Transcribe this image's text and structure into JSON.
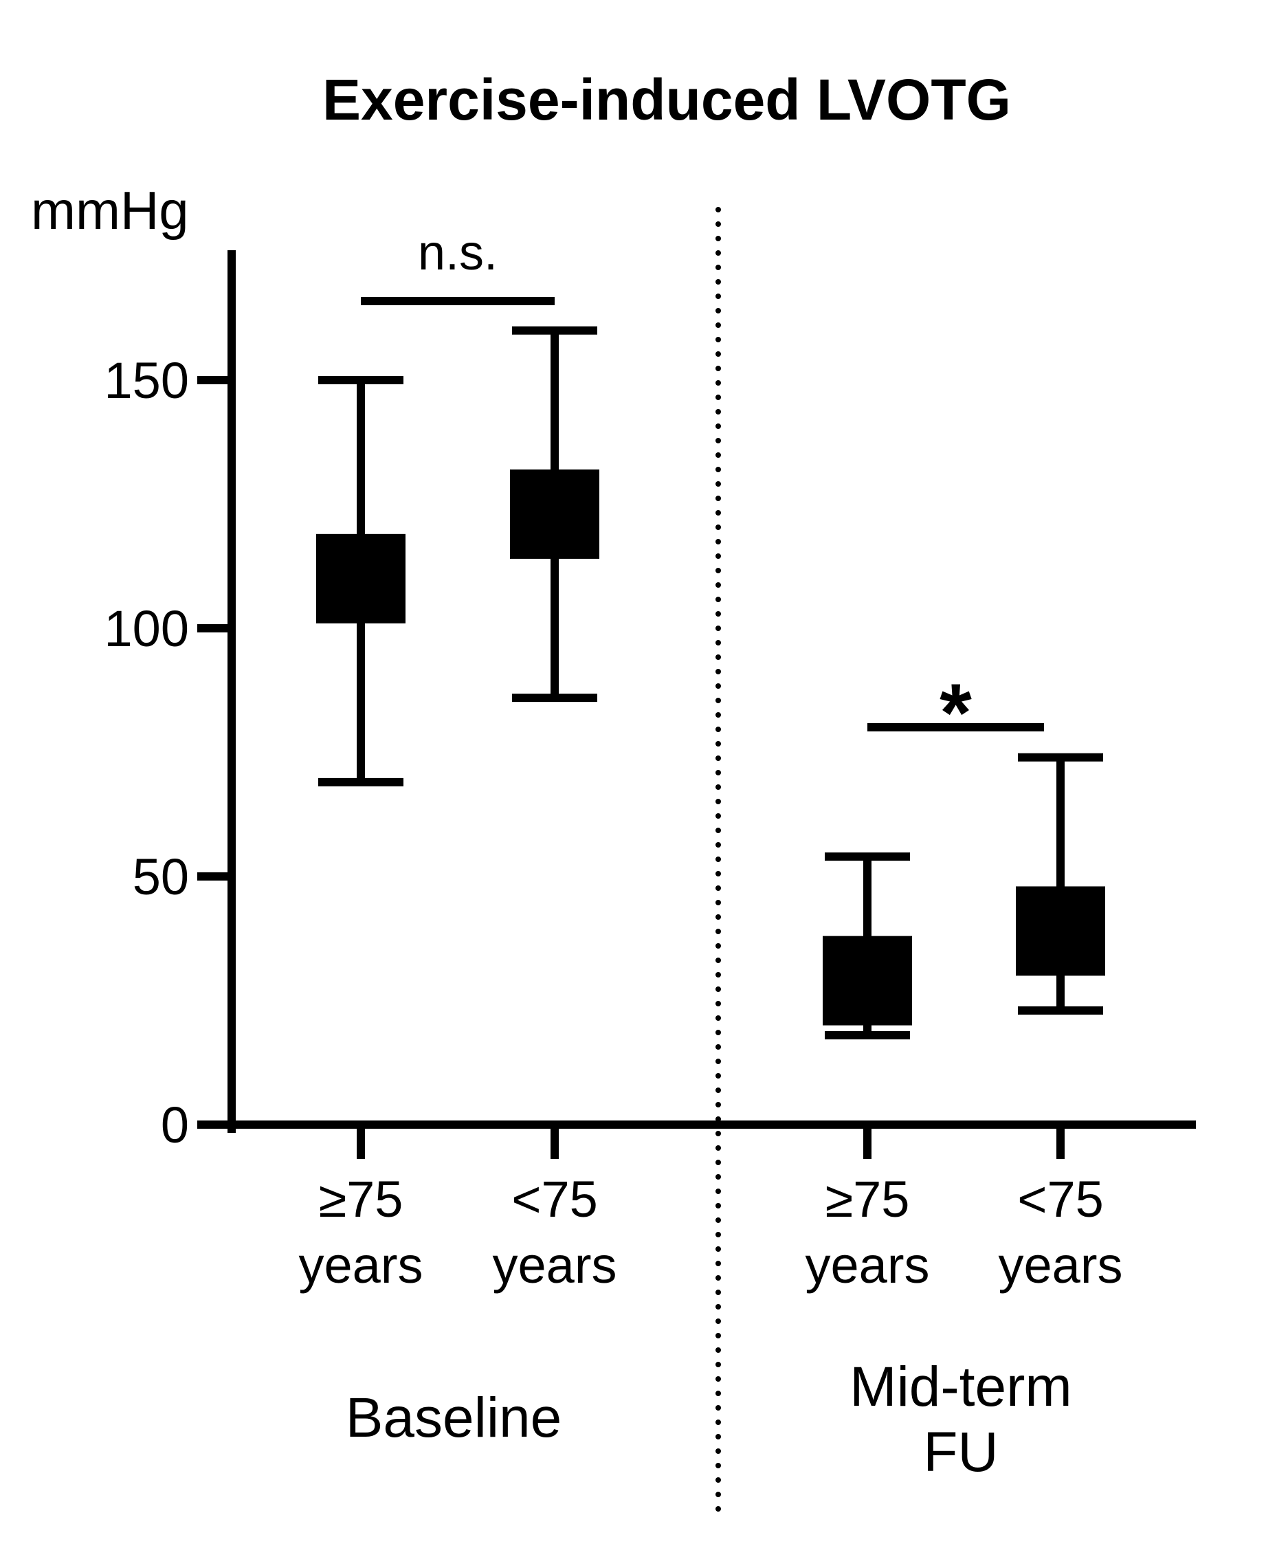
{
  "chart_data": {
    "type": "box",
    "title": "Exercise-induced LVOTG",
    "ylabel": "mmHg",
    "ylim": [
      0,
      175
    ],
    "yticks": [
      0,
      50,
      100,
      150
    ],
    "grid": false,
    "legend": "none",
    "groups": [
      {
        "label_lines": [
          "Baseline"
        ],
        "significance": "n.s.",
        "categories": [
          {
            "label_lines": [
              "≥75",
              "years"
            ],
            "whisker_low": 69,
            "q1": 101,
            "q3": 119,
            "whisker_high": 150
          },
          {
            "label_lines": [
              "<75",
              "years"
            ],
            "whisker_low": 86,
            "q1": 114,
            "q3": 132,
            "whisker_high": 160
          }
        ]
      },
      {
        "label_lines": [
          "Mid-term",
          "FU"
        ],
        "significance": "*",
        "categories": [
          {
            "label_lines": [
              "≥75",
              "years"
            ],
            "whisker_low": 18,
            "q1": 20,
            "q3": 38,
            "whisker_high": 54
          },
          {
            "label_lines": [
              "<75",
              "years"
            ],
            "whisker_low": 23,
            "q1": 30,
            "q3": 48,
            "whisker_high": 74
          }
        ]
      }
    ],
    "colors": {
      "box": "#000000",
      "axis": "#000000"
    }
  }
}
